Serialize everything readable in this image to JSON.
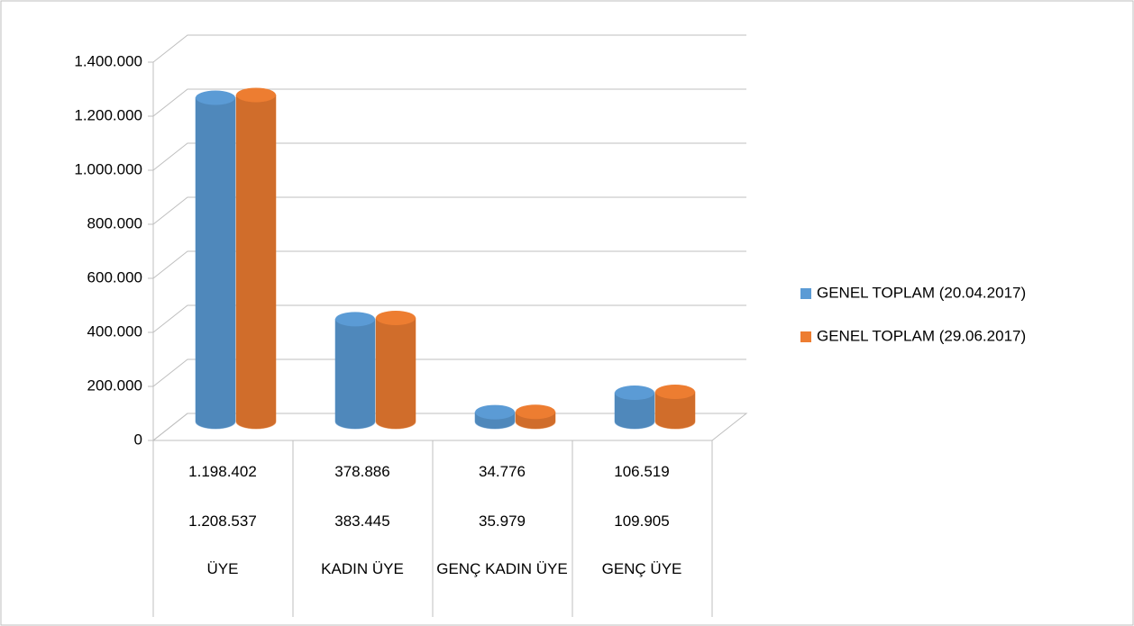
{
  "chart_data": {
    "type": "bar3d",
    "categories": [
      "ÜYE",
      "KADIN ÜYE",
      "GENÇ KADIN ÜYE",
      "GENÇ ÜYE"
    ],
    "series": [
      {
        "name": "GENEL TOPLAM (20.04.2017)",
        "color": "#5b9bd5",
        "values": [
          1198402,
          378886,
          34776,
          106519
        ],
        "value_labels": [
          "1.198.402",
          "378.886",
          "34.776",
          "106.519"
        ]
      },
      {
        "name": "GENEL TOPLAM (29.06.2017)",
        "color": "#ed7d31",
        "values": [
          1208537,
          383445,
          35979,
          109905
        ],
        "value_labels": [
          "1.208.537",
          "383.445",
          "35.979",
          "109.905"
        ]
      }
    ],
    "ylim": [
      0,
      1400000
    ],
    "yticks": [
      0,
      {
        "value": 200000,
        "label": "200.000"
      },
      {
        "value": 400000,
        "label": "400.000"
      },
      {
        "value": 600000,
        "label": "600.000"
      },
      {
        "value": 800000,
        "label": "800.000"
      },
      {
        "value": 1000000,
        "label": "1.000.000"
      },
      {
        "value": 1200000,
        "label": "1.200.000"
      },
      {
        "value": 1400000,
        "label": "1.400.000"
      }
    ],
    "grid": true,
    "legend": "right"
  }
}
